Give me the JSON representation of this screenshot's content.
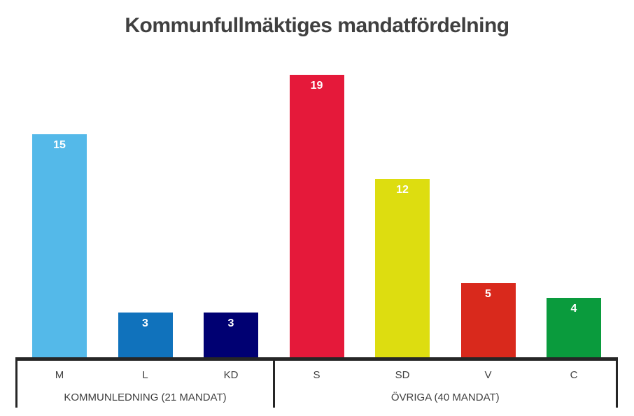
{
  "chart_data": {
    "type": "bar",
    "title": "Kommunfullmäktiges mandatfördelning",
    "categories": [
      "M",
      "L",
      "KD",
      "S",
      "SD",
      "V",
      "C"
    ],
    "values": [
      15,
      3,
      3,
      19,
      12,
      5,
      4
    ],
    "bar_colors": [
      "#54B9E9",
      "#1072BC",
      "#000072",
      "#E5193A",
      "#DDDD10",
      "#D9291C",
      "#0A9B3D"
    ],
    "groups": [
      {
        "label": "KOMMUNLEDNING (21 MANDAT)",
        "categories": [
          "M",
          "L",
          "KD"
        ]
      },
      {
        "label": "ÖVRIGA (40 MANDAT)",
        "categories": [
          "S",
          "SD",
          "V",
          "C"
        ]
      }
    ],
    "xlabel": "",
    "ylabel": "",
    "ylim": [
      0,
      19
    ],
    "grid": false,
    "legend_position": "none",
    "value_labels": "inside-top",
    "text_color": "#404040",
    "axis_color": "#262626",
    "value_label_color": "#ffffff"
  }
}
